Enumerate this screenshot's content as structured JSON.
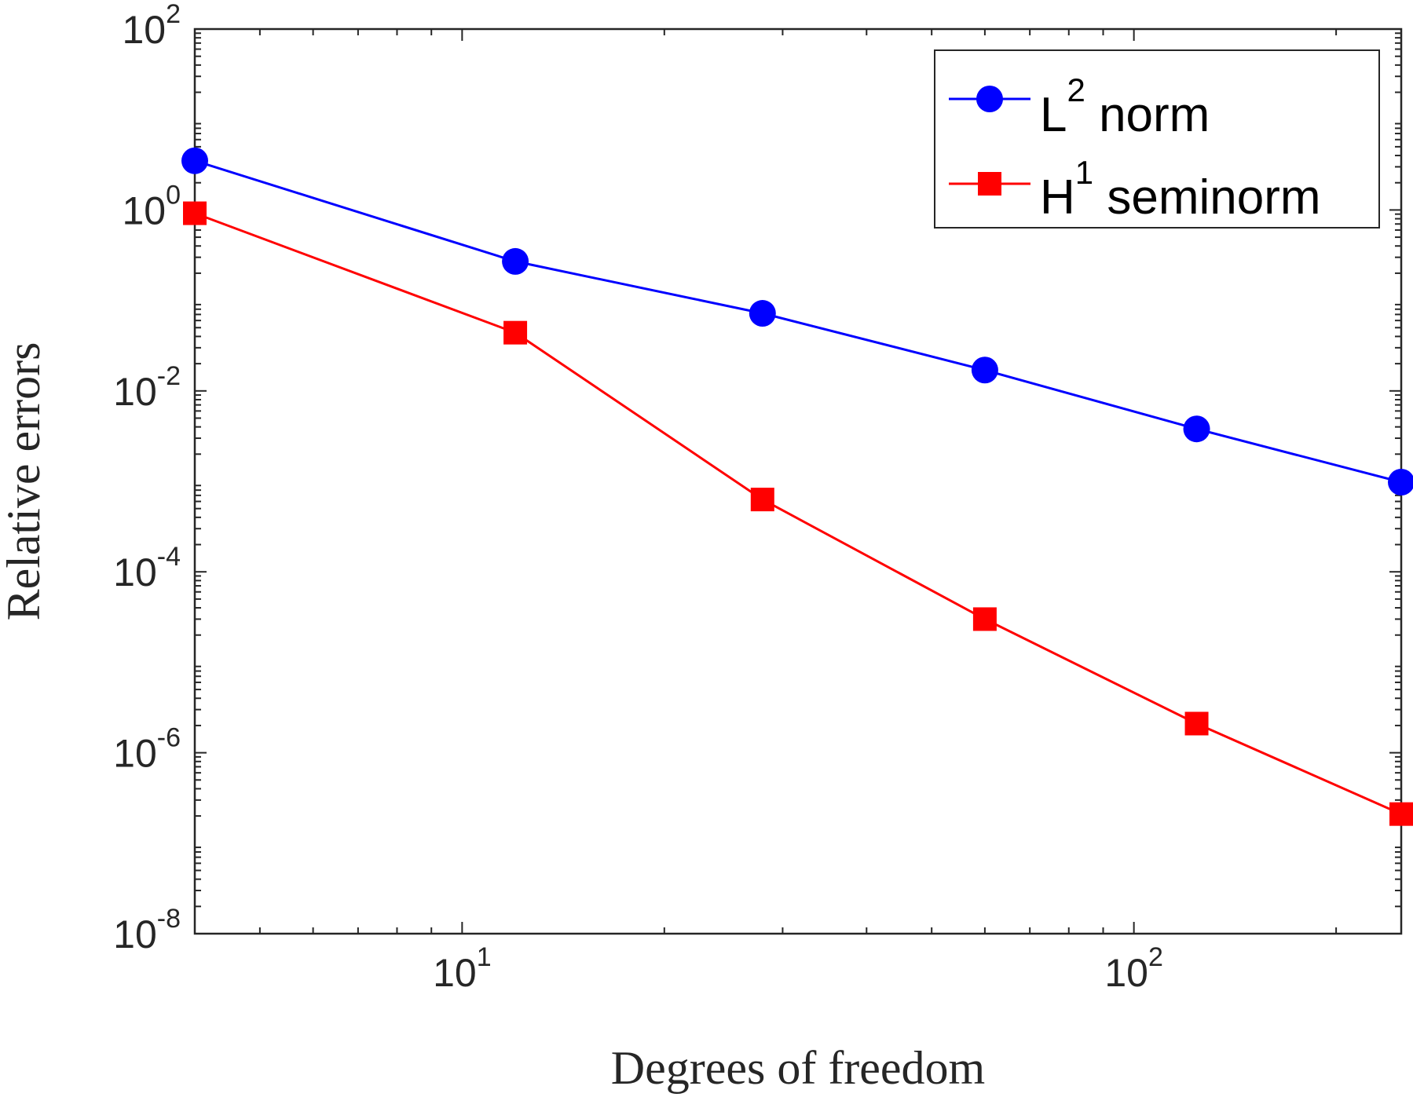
{
  "chart_data": {
    "type": "line",
    "xscale": "log",
    "yscale": "log",
    "xlabel": "Degrees of freedom",
    "ylabel": "Relative errors",
    "xlim": [
      4,
      250
    ],
    "ylim": [
      1e-08,
      100
    ],
    "x_ticks": [
      {
        "value": 10,
        "base": "10",
        "exp": "1"
      },
      {
        "value": 100,
        "base": "10",
        "exp": "2"
      }
    ],
    "y_ticks": [
      {
        "value": 100,
        "base": "10",
        "exp": "2"
      },
      {
        "value": 1,
        "base": "10",
        "exp": "0"
      },
      {
        "value": 0.01,
        "base": "10",
        "exp": "-2"
      },
      {
        "value": 0.0001,
        "base": "10",
        "exp": "-4"
      },
      {
        "value": 1e-06,
        "base": "10",
        "exp": "-6"
      },
      {
        "value": 1e-08,
        "base": "10",
        "exp": "-8"
      }
    ],
    "legend_position": "top-right",
    "series": [
      {
        "name": "L2 norm",
        "legend_base": "L",
        "legend_sup": "2",
        "legend_rest": " norm",
        "color": "#0000ff",
        "marker": "circle",
        "x": [
          4,
          12,
          28,
          60,
          124,
          250
        ],
        "y": [
          3.5,
          0.27,
          0.072,
          0.017,
          0.0038,
          0.00098
        ]
      },
      {
        "name": "H1 seminorm",
        "legend_base": "H",
        "legend_sup": "1",
        "legend_rest": " seminorm",
        "color": "#ff0000",
        "marker": "square",
        "x": [
          4,
          12,
          28,
          60,
          124,
          250
        ],
        "y": [
          0.92,
          0.044,
          0.00063,
          3e-05,
          2.1e-06,
          2.1e-07
        ]
      }
    ]
  }
}
